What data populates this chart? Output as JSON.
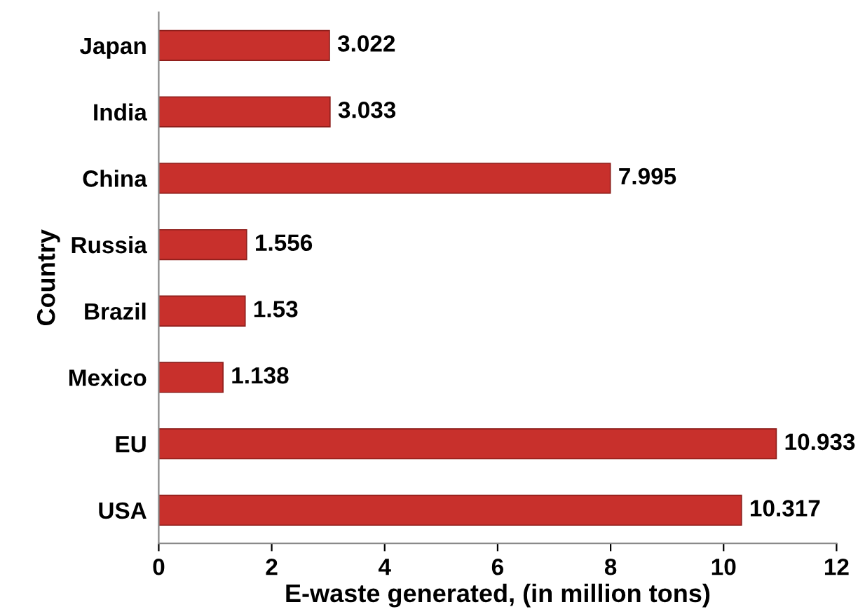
{
  "chart_data": {
    "type": "bar",
    "orientation": "horizontal",
    "categories": [
      "Japan",
      "India",
      "China",
      "Russia",
      "Brazil",
      "Mexico",
      "EU",
      "USA"
    ],
    "values": [
      3.022,
      3.033,
      7.995,
      1.556,
      1.53,
      1.138,
      10.933,
      10.317
    ],
    "color": "#c8302c",
    "xlabel": "E-waste generated, (in million tons)",
    "ylabel": "Country",
    "xlim": [
      0,
      12
    ],
    "xticks": [
      0,
      2,
      4,
      6,
      8,
      10,
      12
    ],
    "data_labels": true,
    "grid": false,
    "legend": false
  }
}
